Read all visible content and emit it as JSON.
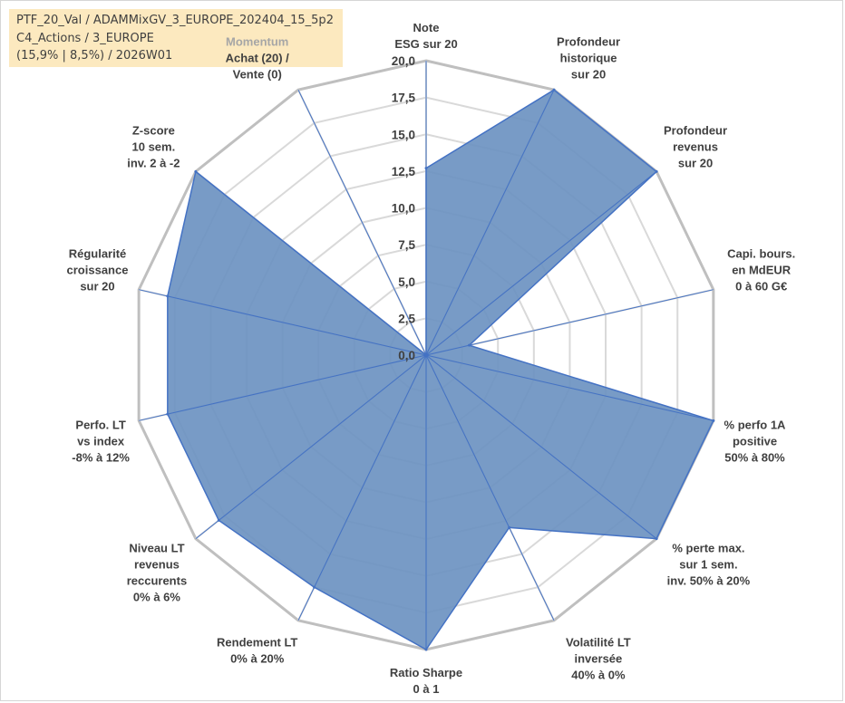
{
  "title_box": {
    "line1": "PTF_20_Val / ADAMMixGV_3_EUROPE_202404_15_5p2",
    "line2": "C4_Actions / 3_EUROPE",
    "line3": "(15,9% | 8,5%) / 2026W01"
  },
  "chart_data": {
    "type": "radar",
    "r_max": 20,
    "r_ticks": [
      "0,0",
      "2,5",
      "5,0",
      "7,5",
      "10,0",
      "12,5",
      "15,0",
      "17,5",
      "20,0"
    ],
    "tick_values": [
      0,
      2.5,
      5,
      7.5,
      10,
      12.5,
      15,
      17.5,
      20
    ],
    "axes": [
      {
        "lines": [
          "Note",
          "ESG sur 20"
        ],
        "value": 12.7
      },
      {
        "lines": [
          "Profondeur",
          "historique",
          "sur 20"
        ],
        "value": 20
      },
      {
        "lines": [
          "Profondeur",
          "revenus",
          "sur 20"
        ],
        "value": 20
      },
      {
        "lines": [
          "Capi. bours.",
          "en MdEUR",
          "0 à 60 G€"
        ],
        "value": 3
      },
      {
        "lines": [
          "% perfo 1A",
          "positive",
          "50% à 80%"
        ],
        "value": 20
      },
      {
        "lines": [
          "% perte max.",
          "sur 1 sem.",
          "inv. 50% à 20%"
        ],
        "value": 20
      },
      {
        "lines": [
          "Volatilité LT",
          "inversée",
          "40% à 0%"
        ],
        "value": 13
      },
      {
        "lines": [
          "Ratio Sharpe",
          "0 à 1"
        ],
        "value": 20
      },
      {
        "lines": [
          "Rendement LT",
          "0% à 20%"
        ],
        "value": 17.5
      },
      {
        "lines": [
          "Niveau LT",
          "revenus",
          "reccurents",
          "0% à 6%"
        ],
        "value": 18
      },
      {
        "lines": [
          "Perfo. LT",
          "vs index",
          "-8% à 12%"
        ],
        "value": 18
      },
      {
        "lines": [
          "Régularité",
          "croissance",
          "sur 20"
        ],
        "value": 18
      },
      {
        "lines": [
          "Z-score",
          "10 sem.",
          "inv. 2 à -2"
        ],
        "value": 20
      },
      {
        "lines": [
          "Momentum",
          "Achat (20) /",
          "Vente (0)"
        ],
        "value": 0
      }
    ],
    "colors": {
      "fill": "#6d93c1",
      "stroke": "#4472c4",
      "grid": "#d9d9d9",
      "outer_grid": "#bfbfbf"
    }
  }
}
